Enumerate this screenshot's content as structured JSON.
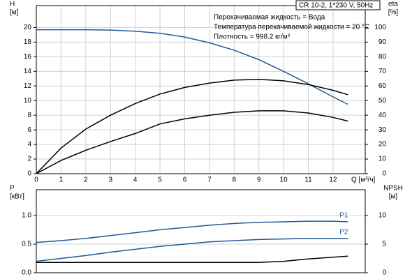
{
  "chart_data": [
    {
      "type": "line",
      "info_title": "CR 10-2, 1*230 V, 50Hz",
      "annotations": [
        "Перекачиваемая жидкость = Вода",
        "Температура перекачиваемой жидкости = 20 °C",
        "Плотность = 998.2 кг/м³"
      ],
      "y_label": "H",
      "y_unit": "[м]",
      "y2_label": "eta",
      "y2_unit": "[%]",
      "x_label": "Q [м³/ч]",
      "x": [
        0,
        1,
        2,
        3,
        4,
        5,
        6,
        7,
        8,
        9,
        10,
        11,
        12,
        12.6
      ],
      "xlim": [
        0,
        13.3
      ],
      "xticks": [
        0,
        1,
        2,
        3,
        4,
        5,
        6,
        7,
        8,
        9,
        10,
        11,
        12
      ],
      "ylim": [
        0,
        23
      ],
      "yticks": [
        0,
        2,
        4,
        6,
        8,
        10,
        12,
        14,
        16,
        18,
        20
      ],
      "y2lim": [
        0,
        115
      ],
      "y2ticks": [
        0,
        10,
        20,
        30,
        40,
        50,
        60,
        70,
        80,
        90,
        100
      ],
      "series": [
        {
          "color": "#1f5a96",
          "values": [
            19.7,
            19.7,
            19.7,
            19.65,
            19.5,
            19.2,
            18.7,
            17.9,
            16.9,
            15.6,
            14.0,
            12.3,
            10.5,
            9.5
          ]
        },
        {
          "color": "#000000",
          "axis": "y2",
          "values": [
            0,
            17.5,
            30.5,
            40,
            48,
            54.5,
            59,
            62,
            64,
            64.5,
            63.5,
            61,
            57,
            54
          ]
        },
        {
          "color": "#000000",
          "axis": "y2",
          "values": [
            0,
            9,
            16,
            22,
            27.5,
            34,
            37.5,
            40,
            42,
            43,
            43,
            41.5,
            38.5,
            36
          ]
        }
      ]
    },
    {
      "type": "line",
      "y_label": "P",
      "y_unit": "[кВт]",
      "y2_label": "NPSH",
      "y2_unit": "[м]",
      "x": [
        0,
        1,
        2,
        3,
        4,
        5,
        6,
        7,
        8,
        9,
        10,
        11,
        12,
        12.6
      ],
      "xlim": [
        0,
        13.3
      ],
      "ylim": [
        0,
        1.45
      ],
      "yticks": [
        {
          "value": 0,
          "label": "0.0"
        },
        {
          "value": 0.5,
          "label": "0.5"
        },
        {
          "value": 1,
          "label": "1.0"
        }
      ],
      "y2lim": [
        0,
        14.5
      ],
      "y2ticks": [
        0,
        5,
        10
      ],
      "series": [
        {
          "name": "P1",
          "color": "#1f5a96",
          "values": [
            0.53,
            0.56,
            0.6,
            0.65,
            0.7,
            0.75,
            0.79,
            0.83,
            0.86,
            0.88,
            0.89,
            0.9,
            0.9,
            0.89
          ]
        },
        {
          "name": "P2",
          "color": "#1f5a96",
          "values": [
            0.2,
            0.25,
            0.3,
            0.36,
            0.41,
            0.46,
            0.5,
            0.54,
            0.56,
            0.58,
            0.59,
            0.6,
            0.6,
            0.6
          ]
        },
        {
          "color": "#000000",
          "axis": "y2",
          "values": [
            1.8,
            1.8,
            1.8,
            1.8,
            1.8,
            1.8,
            1.8,
            1.8,
            1.8,
            1.8,
            2.0,
            2.4,
            2.7,
            2.9
          ]
        }
      ]
    }
  ]
}
